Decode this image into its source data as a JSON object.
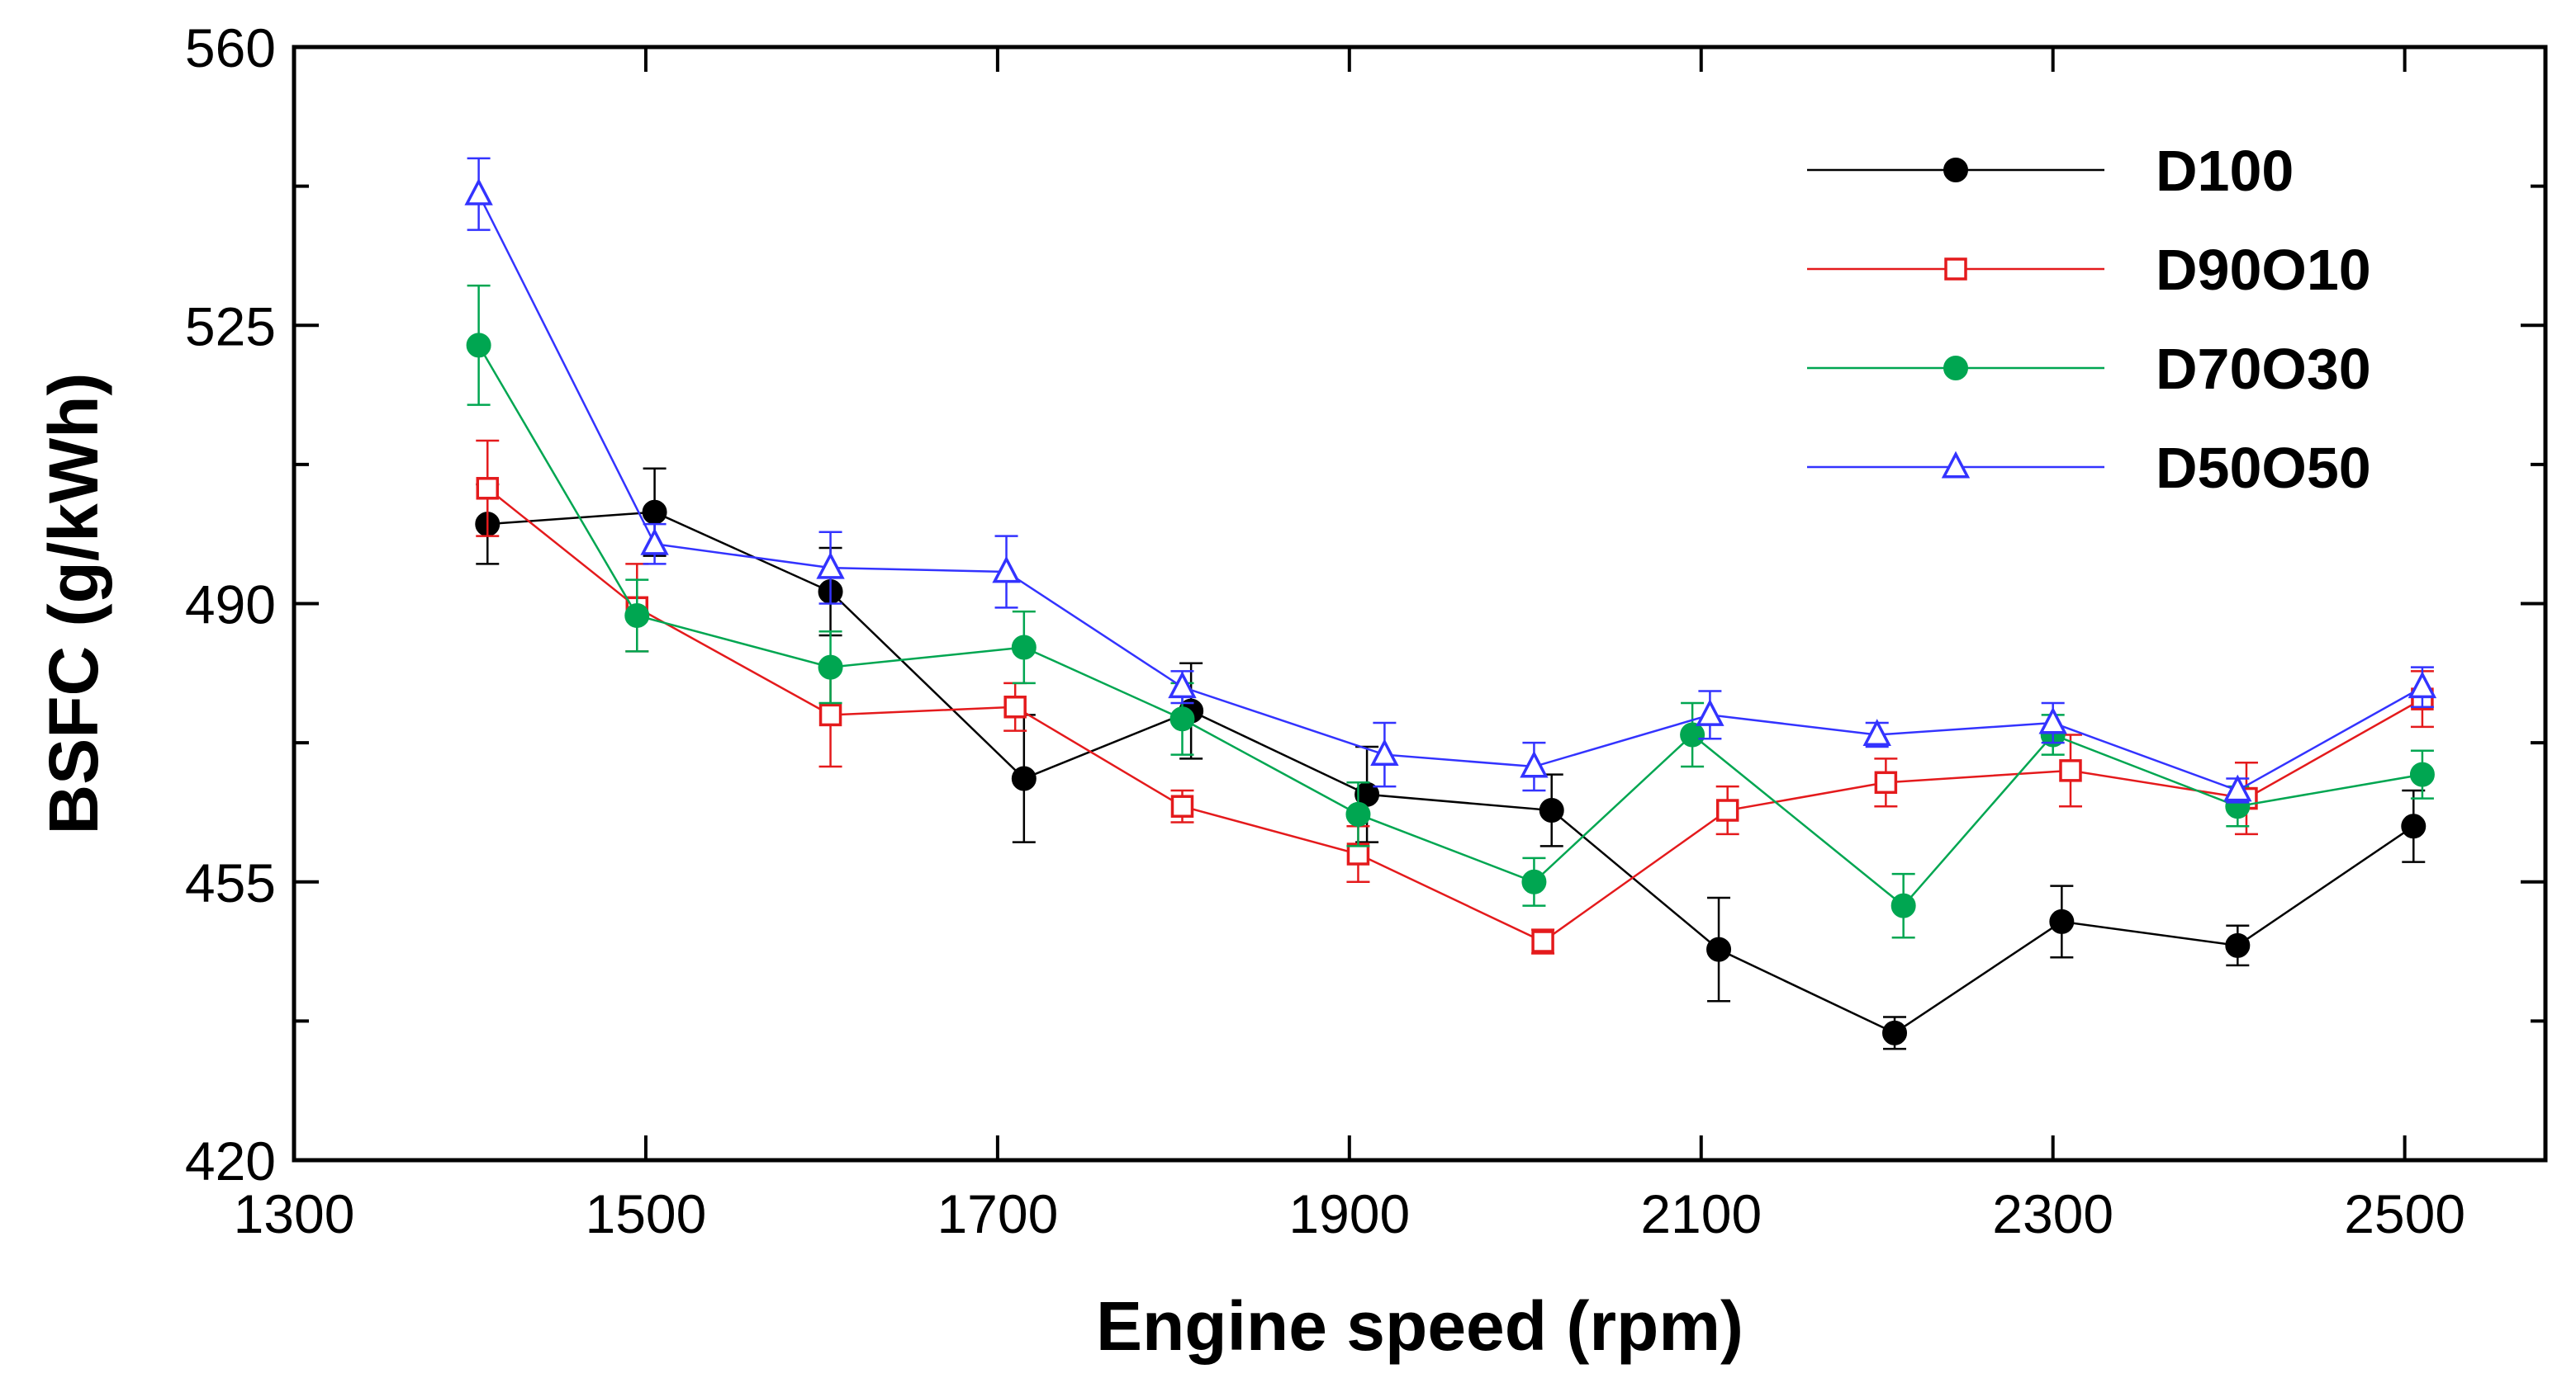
{
  "chart_data": {
    "type": "line",
    "xlabel": "Engine speed (rpm)",
    "ylabel": "BSFC (g/kWh)",
    "xlim": [
      1300,
      2580
    ],
    "ylim": [
      420,
      560
    ],
    "xticks": [
      1300,
      1500,
      1700,
      1900,
      2100,
      2300,
      2500
    ],
    "xtick_labels": [
      "1300",
      "1500",
      "1700",
      "1900",
      "2100",
      "2300",
      "2500"
    ],
    "yticks": [
      420,
      437.5,
      455,
      472.5,
      490,
      507.5,
      525,
      542.5,
      560
    ],
    "ytick_labels": [
      "420",
      "",
      "455",
      "",
      "490",
      "",
      "525",
      "",
      "560"
    ],
    "grid": false,
    "legend_position": "top-right",
    "error_bars": true,
    "series": [
      {
        "name": "D100",
        "color": "#000000",
        "marker": "filled-circle",
        "x": [
          1410,
          1505,
          1605,
          1715,
          1810,
          1910,
          2015,
          2110,
          2210,
          2305,
          2405,
          2505
        ],
        "y": [
          500.0,
          501.5,
          491.5,
          468.0,
          476.5,
          466.0,
          464.0,
          446.5,
          436.0,
          450.0,
          447.0,
          462.0
        ],
        "error": [
          5.0,
          5.5,
          5.5,
          8.0,
          6.0,
          6.0,
          4.5,
          6.5,
          2.0,
          4.5,
          2.5,
          4.5
        ]
      },
      {
        "name": "D90O10",
        "color": "#e41a1c",
        "marker": "open-square",
        "x": [
          1410,
          1495,
          1605,
          1710,
          1805,
          1905,
          2010,
          2115,
          2205,
          2310,
          2410,
          2510
        ],
        "y": [
          504.5,
          489.5,
          476.0,
          477.0,
          464.5,
          458.5,
          447.5,
          464.0,
          467.5,
          469.0,
          465.5,
          478.0
        ],
        "error": [
          6.0,
          5.5,
          6.5,
          3.0,
          2.0,
          3.5,
          1.5,
          3.0,
          3.0,
          4.5,
          4.5,
          3.5
        ]
      },
      {
        "name": "D70O30",
        "color": "#00a651",
        "marker": "filled-circle",
        "x": [
          1405,
          1495,
          1605,
          1715,
          1805,
          1905,
          2005,
          2095,
          2215,
          2300,
          2405,
          2510
        ],
        "y": [
          522.5,
          488.5,
          482.0,
          484.5,
          475.5,
          463.5,
          455.0,
          473.5,
          452.0,
          473.5,
          464.5,
          468.5
        ],
        "error": [
          7.5,
          4.5,
          4.5,
          4.5,
          4.5,
          4.0,
          3.0,
          4.0,
          4.0,
          2.5,
          2.5,
          3.0
        ]
      },
      {
        "name": "D50O50",
        "color": "#3333ff",
        "marker": "open-triangle",
        "x": [
          1405,
          1505,
          1605,
          1705,
          1805,
          1920,
          2005,
          2105,
          2200,
          2300,
          2405,
          2510
        ],
        "y": [
          541.5,
          497.5,
          494.5,
          494.0,
          479.5,
          471.0,
          469.5,
          476.0,
          473.5,
          475.0,
          466.5,
          479.5
        ],
        "error": [
          4.5,
          2.5,
          4.5,
          4.5,
          2.0,
          4.0,
          3.0,
          3.0,
          1.5,
          2.5,
          1.5,
          2.5
        ]
      }
    ]
  }
}
